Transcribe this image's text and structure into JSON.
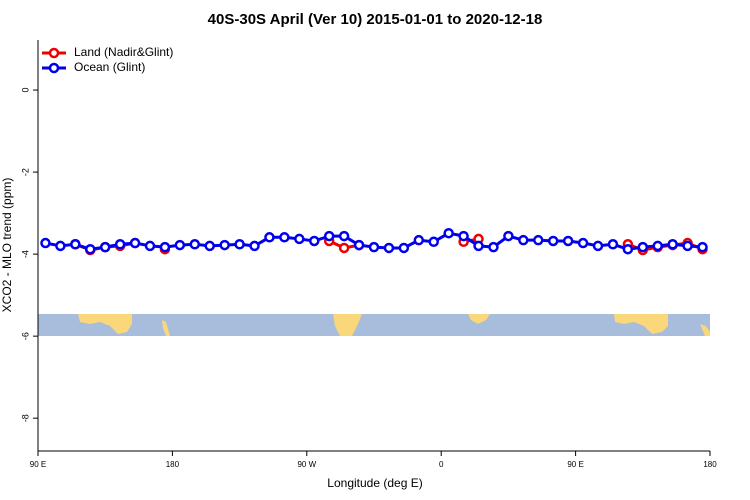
{
  "chart_data": {
    "type": "line",
    "title": "40S-30S April (Ver 10)   2015-01-01 to 2020-12-18",
    "x_label": "Longitude (deg E)",
    "y_label": "XCO2 - MLO trend (ppm)",
    "x": [
      95,
      105,
      115,
      125,
      135,
      145,
      155,
      165,
      175,
      185,
      195,
      205,
      215,
      225,
      235,
      245,
      255,
      265,
      275,
      285,
      295,
      305,
      315,
      325,
      335,
      345,
      355,
      365,
      375,
      385,
      395,
      405,
      415,
      425,
      435,
      445,
      455,
      465,
      475,
      485,
      495,
      505,
      515,
      525,
      535
    ],
    "series": [
      {
        "name": "Land (Nadir&Glint)",
        "color": "#ee0000",
        "values": [
          null,
          null,
          -3.76,
          -3.9,
          -3.83,
          -3.8,
          -3.73,
          null,
          -3.88,
          null,
          null,
          null,
          null,
          null,
          null,
          null,
          null,
          null,
          null,
          -3.68,
          -3.85,
          -3.78,
          null,
          null,
          null,
          null,
          null,
          null,
          -3.7,
          -3.63,
          null,
          null,
          null,
          null,
          null,
          null,
          null,
          null,
          null,
          -3.76,
          -3.9,
          -3.83,
          -3.78,
          -3.73,
          -3.88
        ]
      },
      {
        "name": "Ocean (Glint)",
        "color": "#0000ee",
        "values": [
          -3.73,
          -3.8,
          -3.76,
          -3.88,
          -3.83,
          -3.76,
          -3.73,
          -3.8,
          -3.83,
          -3.78,
          -3.76,
          -3.8,
          -3.78,
          -3.76,
          -3.8,
          -3.59,
          -3.59,
          -3.63,
          -3.68,
          -3.56,
          -3.56,
          -3.78,
          -3.83,
          -3.85,
          -3.85,
          -3.66,
          -3.7,
          -3.49,
          -3.56,
          -3.8,
          -3.83,
          -3.56,
          -3.66,
          -3.66,
          -3.68,
          -3.68,
          -3.73,
          -3.8,
          -3.76,
          -3.88,
          -3.83,
          -3.8,
          -3.76,
          -3.8,
          -3.83
        ]
      }
    ],
    "xlim": [
      90,
      540
    ],
    "xticks": [
      {
        "value": 90,
        "label": "90 E"
      },
      180,
      {
        "value": 270,
        "label": "90 W"
      },
      {
        "value": 360,
        "label": "0"
      },
      {
        "value": 450,
        "label": "90 E"
      },
      {
        "value": 540,
        "label": "180"
      }
    ],
    "ylim": [
      -8.8,
      1.22
    ],
    "yticks": [
      0,
      -2,
      -4,
      -6,
      -8
    ],
    "legend": "top-left"
  }
}
